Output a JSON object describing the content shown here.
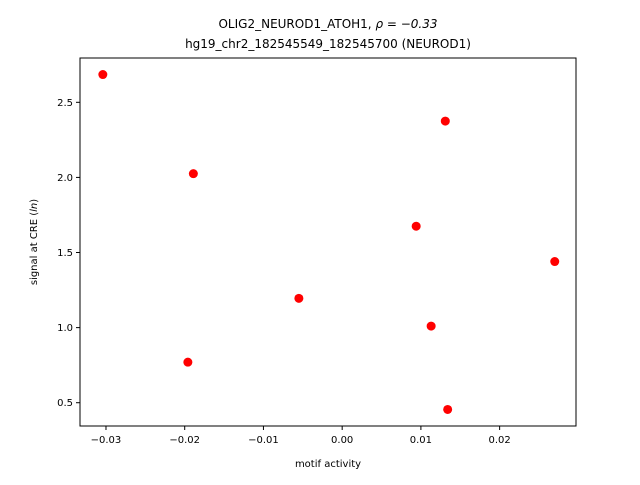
{
  "chart_data": {
    "type": "scatter",
    "title_line1_prefix": "OLIG2_NEUROD1_ATOH1, ",
    "title_line1_math": "ρ = −0.33",
    "title_line2": "hg19_chr2_182545549_182545700 (NEUROD1)",
    "xlabel": "motif activity",
    "ylabel_prefix": "signal at CRE (",
    "ylabel_math": "ln",
    "ylabel_suffix": ")",
    "xlim": [
      -0.0333,
      0.0297
    ],
    "ylim": [
      0.345,
      2.795
    ],
    "x_ticks": [
      {
        "value": -0.03,
        "label": "−0.03"
      },
      {
        "value": -0.02,
        "label": "−0.02"
      },
      {
        "value": -0.01,
        "label": "−0.01"
      },
      {
        "value": 0.0,
        "label": "0.00"
      },
      {
        "value": 0.01,
        "label": "0.01"
      },
      {
        "value": 0.02,
        "label": "0.02"
      }
    ],
    "y_ticks": [
      {
        "value": 0.5,
        "label": "0.5"
      },
      {
        "value": 1.0,
        "label": "1.0"
      },
      {
        "value": 1.5,
        "label": "1.5"
      },
      {
        "value": 2.0,
        "label": "2.0"
      },
      {
        "value": 2.5,
        "label": "2.5"
      }
    ],
    "grid": false,
    "marker_color": "#ff0000",
    "points": [
      {
        "x": -0.0304,
        "y": 2.685
      },
      {
        "x": 0.0131,
        "y": 2.375
      },
      {
        "x": -0.0189,
        "y": 2.025
      },
      {
        "x": 0.0094,
        "y": 1.675
      },
      {
        "x": 0.027,
        "y": 1.44
      },
      {
        "x": -0.0055,
        "y": 1.195
      },
      {
        "x": 0.0113,
        "y": 1.01
      },
      {
        "x": -0.0196,
        "y": 0.77
      },
      {
        "x": 0.0134,
        "y": 0.455
      }
    ]
  }
}
